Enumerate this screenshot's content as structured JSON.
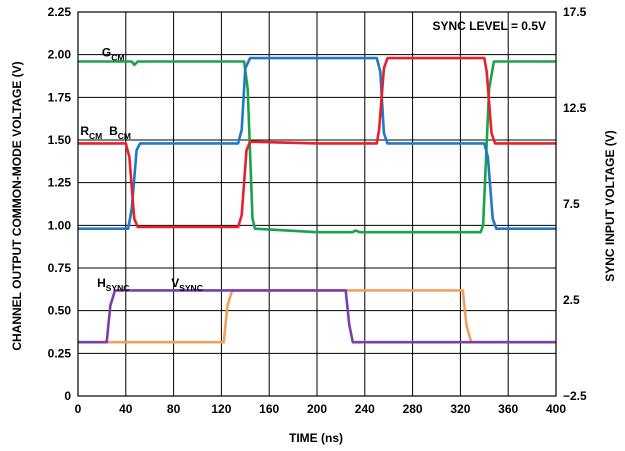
{
  "chart_data": {
    "type": "line",
    "xlabel": "TIME (ns)",
    "ylabel_left": "CHANNEL OUTPUT COMMON-MODE VOLTAGE (V)",
    "ylabel_right": "SYNC INPUT VOLTAGE (V)",
    "xlim": [
      0,
      400
    ],
    "ylim_left": [
      0,
      2.25
    ],
    "ylim_right": [
      -2.5,
      17.5
    ],
    "x_ticks": [
      "0",
      "40",
      "80",
      "120",
      "160",
      "200",
      "240",
      "280",
      "320",
      "360",
      "400"
    ],
    "y_ticks_left": [
      "0",
      "0.25",
      "0.50",
      "0.75",
      "1.00",
      "1.25",
      "1.50",
      "1.75",
      "2.00",
      "2.25"
    ],
    "y_ticks_right": [
      "−2.5",
      "2.5",
      "7.5",
      "12.5",
      "17.5"
    ],
    "grid": true,
    "annotation": "SYNC LEVEL = 0.5V",
    "series": [
      {
        "name": "GCM",
        "label_main": "G",
        "label_sub": "CM",
        "color": "#1aa34a",
        "axis": "left",
        "x": [
          0,
          45,
          47,
          50,
          139,
          142,
          146,
          148,
          200,
          230,
          232,
          236,
          238,
          337,
          339,
          344,
          348,
          400
        ],
        "y": [
          1.96,
          1.96,
          1.94,
          1.96,
          1.96,
          1.8,
          1.04,
          0.98,
          0.96,
          0.96,
          0.97,
          0.96,
          0.96,
          0.96,
          1.0,
          1.8,
          1.96,
          1.96
        ]
      },
      {
        "name": "RCM",
        "label_main": "R",
        "label_sub": "CM",
        "color": "#e8202a",
        "axis": "left",
        "x": [
          0,
          40,
          43,
          47,
          50,
          120,
          134,
          137,
          141,
          144,
          200,
          250,
          252,
          256,
          259,
          340,
          342,
          346,
          349,
          400
        ],
        "y": [
          1.48,
          1.48,
          1.4,
          1.04,
          0.99,
          0.99,
          0.99,
          1.06,
          1.44,
          1.49,
          1.48,
          1.48,
          1.56,
          1.92,
          1.98,
          1.98,
          1.9,
          1.54,
          1.48,
          1.48
        ]
      },
      {
        "name": "BCM",
        "label_main": "B",
        "label_sub": "CM",
        "color": "#1f78c8",
        "axis": "left",
        "x": [
          0,
          42,
          45,
          49,
          52,
          100,
          134,
          137,
          140,
          144,
          200,
          250,
          253,
          256,
          259,
          340,
          343,
          347,
          350,
          400
        ],
        "y": [
          0.98,
          0.98,
          1.1,
          1.44,
          1.48,
          1.48,
          1.48,
          1.56,
          1.92,
          1.98,
          1.98,
          1.98,
          1.9,
          1.54,
          1.48,
          1.48,
          1.4,
          1.04,
          0.98,
          0.98
        ]
      },
      {
        "name": "HSYNC",
        "label_main": "H",
        "label_sub": "SYNC",
        "color": "#7a3fa8",
        "axis": "right",
        "x": [
          0,
          24,
          27,
          31,
          224,
          227,
          230,
          400
        ],
        "y": [
          0.3,
          0.3,
          2.2,
          3.0,
          3.0,
          1.2,
          0.3,
          0.3
        ]
      },
      {
        "name": "VSYNC",
        "label_main": "V",
        "label_sub": "SYNC",
        "color": "#f0a060",
        "axis": "right",
        "x": [
          0,
          122,
          125,
          129,
          200,
          322,
          325,
          329,
          400
        ],
        "y": [
          0.3,
          0.3,
          2.2,
          3.0,
          3.0,
          3.0,
          1.2,
          0.3,
          0.3
        ]
      }
    ]
  }
}
